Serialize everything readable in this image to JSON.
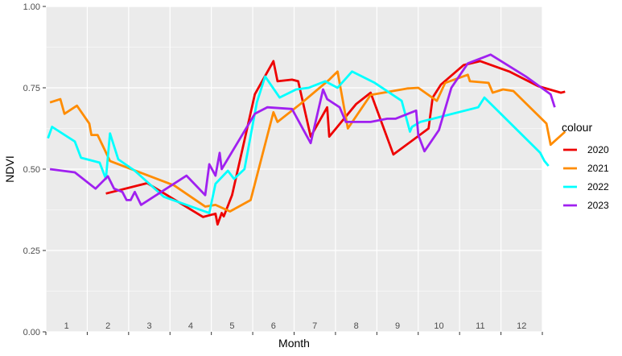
{
  "chart_data": {
    "type": "line",
    "xlabel": "Month",
    "ylabel": "NDVI",
    "xlim": [
      0,
      12
    ],
    "ylim": [
      0,
      1
    ],
    "yticks": [
      "0.00",
      "0.25",
      "0.50",
      "0.75",
      "1.00"
    ],
    "month_labels": [
      "1",
      "2",
      "3",
      "4",
      "5",
      "6",
      "7",
      "8",
      "9",
      "10",
      "11",
      "12"
    ],
    "grid": true,
    "legend_title": "colour",
    "legend_position": "right",
    "series": [
      {
        "name": "2020",
        "color": "#ee0000",
        "points": [
          [
            1.45,
            0.425
          ],
          [
            2.45,
            0.457
          ],
          [
            3.8,
            0.353
          ],
          [
            4.1,
            0.363
          ],
          [
            4.15,
            0.33
          ],
          [
            4.25,
            0.365
          ],
          [
            4.3,
            0.355
          ],
          [
            4.5,
            0.42
          ],
          [
            5.05,
            0.73
          ],
          [
            5.5,
            0.832
          ],
          [
            5.6,
            0.77
          ],
          [
            5.95,
            0.775
          ],
          [
            6.1,
            0.77
          ],
          [
            6.4,
            0.6
          ],
          [
            6.8,
            0.69
          ],
          [
            6.85,
            0.6
          ],
          [
            7.5,
            0.7
          ],
          [
            7.85,
            0.735
          ],
          [
            8.4,
            0.545
          ],
          [
            9.25,
            0.625
          ],
          [
            9.35,
            0.72
          ],
          [
            9.55,
            0.76
          ],
          [
            10.1,
            0.82
          ],
          [
            10.5,
            0.832
          ],
          [
            11.2,
            0.8
          ],
          [
            11.9,
            0.755
          ],
          [
            12.45,
            0.735
          ],
          [
            12.55,
            0.738
          ]
        ]
      },
      {
        "name": "2021",
        "color": "#ff8c00",
        "points": [
          [
            0.1,
            0.705
          ],
          [
            0.35,
            0.715
          ],
          [
            0.45,
            0.67
          ],
          [
            0.75,
            0.695
          ],
          [
            1.05,
            0.64
          ],
          [
            1.1,
            0.605
          ],
          [
            1.25,
            0.605
          ],
          [
            1.55,
            0.525
          ],
          [
            3.1,
            0.45
          ],
          [
            3.85,
            0.385
          ],
          [
            4.1,
            0.39
          ],
          [
            4.45,
            0.37
          ],
          [
            4.95,
            0.405
          ],
          [
            5.5,
            0.675
          ],
          [
            5.6,
            0.645
          ],
          [
            6.15,
            0.7
          ],
          [
            6.85,
            0.775
          ],
          [
            7.05,
            0.8
          ],
          [
            7.3,
            0.625
          ],
          [
            7.85,
            0.728
          ],
          [
            8.75,
            0.748
          ],
          [
            9.0,
            0.75
          ],
          [
            9.45,
            0.71
          ],
          [
            9.65,
            0.765
          ],
          [
            10.2,
            0.79
          ],
          [
            10.25,
            0.77
          ],
          [
            10.7,
            0.765
          ],
          [
            10.8,
            0.735
          ],
          [
            11.05,
            0.745
          ],
          [
            11.3,
            0.74
          ],
          [
            12.1,
            0.64
          ],
          [
            12.2,
            0.575
          ],
          [
            12.55,
            0.615
          ]
        ]
      },
      {
        "name": "2022",
        "color": "#00ffff",
        "points": [
          [
            0.05,
            0.595
          ],
          [
            0.15,
            0.63
          ],
          [
            0.7,
            0.585
          ],
          [
            0.85,
            0.535
          ],
          [
            1.3,
            0.52
          ],
          [
            1.45,
            0.47
          ],
          [
            1.55,
            0.61
          ],
          [
            1.75,
            0.53
          ],
          [
            2.15,
            0.495
          ],
          [
            2.85,
            0.415
          ],
          [
            3.95,
            0.365
          ],
          [
            4.1,
            0.455
          ],
          [
            4.4,
            0.495
          ],
          [
            4.55,
            0.47
          ],
          [
            4.8,
            0.5
          ],
          [
            5.1,
            0.705
          ],
          [
            5.3,
            0.785
          ],
          [
            5.65,
            0.72
          ],
          [
            6.05,
            0.745
          ],
          [
            6.35,
            0.75
          ],
          [
            6.75,
            0.77
          ],
          [
            7.05,
            0.75
          ],
          [
            7.4,
            0.8
          ],
          [
            7.95,
            0.765
          ],
          [
            8.6,
            0.71
          ],
          [
            8.8,
            0.615
          ],
          [
            8.85,
            0.63
          ],
          [
            9.05,
            0.645
          ],
          [
            10.45,
            0.69
          ],
          [
            10.6,
            0.72
          ],
          [
            11.95,
            0.55
          ],
          [
            12.05,
            0.525
          ],
          [
            12.15,
            0.51
          ]
        ]
      },
      {
        "name": "2023",
        "color": "#a020f0",
        "points": [
          [
            0.1,
            0.5
          ],
          [
            0.7,
            0.49
          ],
          [
            1.2,
            0.44
          ],
          [
            1.5,
            0.478
          ],
          [
            1.65,
            0.44
          ],
          [
            1.85,
            0.43
          ],
          [
            1.95,
            0.405
          ],
          [
            2.05,
            0.405
          ],
          [
            2.15,
            0.43
          ],
          [
            2.3,
            0.39
          ],
          [
            3.4,
            0.48
          ],
          [
            3.85,
            0.42
          ],
          [
            3.95,
            0.515
          ],
          [
            4.1,
            0.48
          ],
          [
            4.2,
            0.55
          ],
          [
            4.25,
            0.5
          ],
          [
            5.05,
            0.67
          ],
          [
            5.35,
            0.69
          ],
          [
            5.95,
            0.685
          ],
          [
            6.4,
            0.58
          ],
          [
            6.7,
            0.745
          ],
          [
            6.8,
            0.715
          ],
          [
            7.1,
            0.69
          ],
          [
            7.25,
            0.645
          ],
          [
            7.85,
            0.645
          ],
          [
            8.25,
            0.655
          ],
          [
            8.45,
            0.655
          ],
          [
            8.95,
            0.68
          ],
          [
            9.0,
            0.605
          ],
          [
            9.15,
            0.555
          ],
          [
            9.5,
            0.62
          ],
          [
            9.8,
            0.75
          ],
          [
            10.2,
            0.825
          ],
          [
            10.75,
            0.852
          ],
          [
            11.6,
            0.785
          ],
          [
            12.2,
            0.73
          ],
          [
            12.3,
            0.69
          ]
        ]
      }
    ]
  }
}
